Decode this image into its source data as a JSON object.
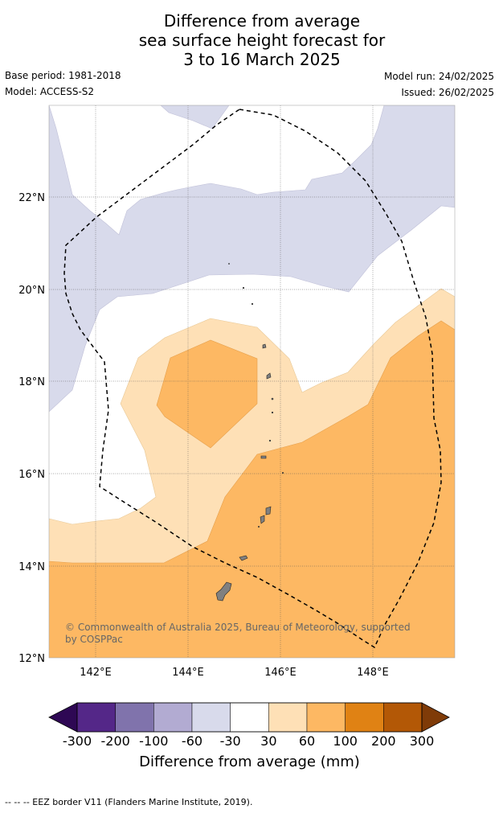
{
  "title_lines": [
    "Difference from average",
    "sea surface height forecast for",
    "3 to 16 March 2025"
  ],
  "base_period": "Base period: 1981-2018",
  "model": "Model: ACCESS-S2",
  "model_run": "Model run: 24/02/2025",
  "issued": "Issued: 26/02/2025",
  "credit_lines": [
    "© Commonwealth of Australia 2025, Bureau of Meteorology, supported",
    "by COSPPac"
  ],
  "lat_ticks": [
    "22°N",
    "20°N",
    "18°N",
    "16°N",
    "14°N",
    "12°N"
  ],
  "lon_ticks": [
    "142°E",
    "144°E",
    "146°E",
    "148°E"
  ],
  "colorbar": {
    "title": "Difference from average (mm)",
    "ticks": [
      "-300",
      "-200",
      "-100",
      "-60",
      "-30",
      "30",
      "60",
      "100",
      "200",
      "300"
    ],
    "colors": [
      "#2e0854",
      "#542788",
      "#8073ac",
      "#b2abd2",
      "#d8daeb",
      "#ffffff",
      "#fee0b6",
      "#fdb863",
      "#e08214",
      "#b35806",
      "#7f3b08"
    ]
  },
  "footnote": "--  --  -- EEZ border V11 (Flanders Marine Institute, 2019)."
}
